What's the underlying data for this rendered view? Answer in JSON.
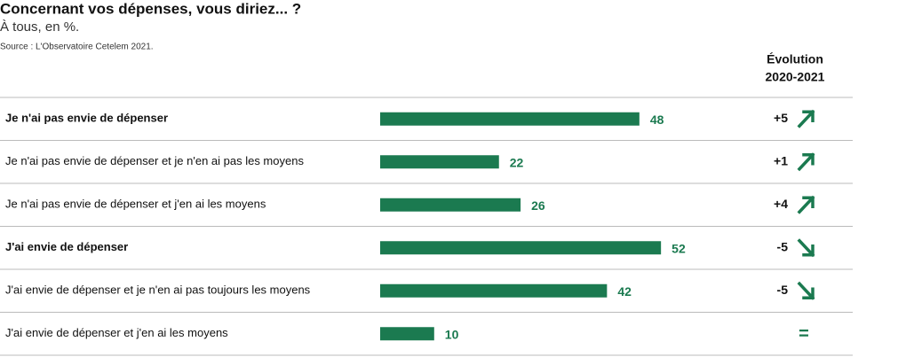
{
  "chart_data": {
    "type": "bar",
    "title": "Concernant vos dépenses, vous diriez... ?",
    "subtitle": "À tous, en %.",
    "source": "Source : L'Observatoire Cetelem 2021.",
    "categories": [
      "Je n'ai pas envie de dépenser",
      "Je n'ai pas envie de dépenser et je n'en ai pas les moyens",
      "Je n'ai pas envie de dépenser et j'en ai les moyens",
      "J'ai envie de dépenser",
      "J'ai envie de dépenser et je n'en ai pas toujours les moyens",
      "J'ai envie de dépenser et j'en ai les moyens"
    ],
    "values": [
      48,
      22,
      26,
      52,
      42,
      10
    ],
    "color": "#1b7a50",
    "xlim": [
      0,
      100
    ],
    "evolution": {
      "header": [
        "Évolution",
        "2020-2021"
      ],
      "values": [
        5,
        1,
        4,
        -5,
        -5,
        0
      ],
      "value_labels": [
        "+5",
        "+1",
        "+4",
        "-5",
        "-5",
        "="
      ]
    }
  }
}
